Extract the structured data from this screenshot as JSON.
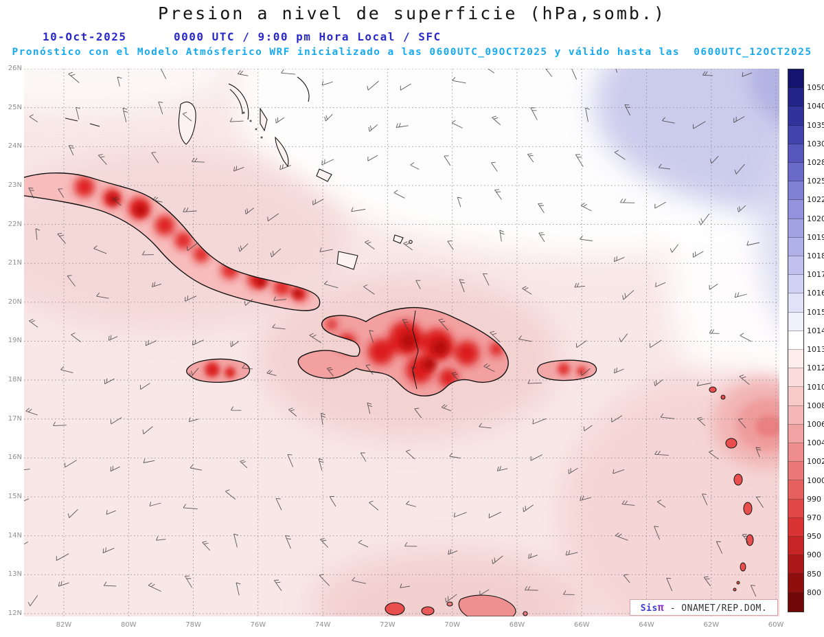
{
  "header": {
    "title": "Presion a nivel de superficie (hPa,somb.)",
    "date": "10-Oct-2025",
    "time": "0000 UTC / 9:00 pm Hora Local / SFC",
    "subtitle": "Pronóstico con el Modelo Atmósferico WRF inicializado a las 0600UTC_09OCT2025 y válido hasta las  0600UTC_12OCT2025"
  },
  "map": {
    "lat_ticks": [
      "26N",
      "25N",
      "24N",
      "23N",
      "22N",
      "21N",
      "20N",
      "19N",
      "18N",
      "17N",
      "16N",
      "15N",
      "14N",
      "13N",
      "12N"
    ],
    "lon_ticks": [
      "82W",
      "80W",
      "78W",
      "76W",
      "74W",
      "72W",
      "70W",
      "68W",
      "66W",
      "64W",
      "62W",
      "60W"
    ],
    "attribution": {
      "sis": "Sis",
      "pi": "π",
      "text": "- ONAMET/REP.DOM."
    }
  },
  "colorbar": {
    "units": "hPa",
    "levels": [
      1050,
      1040,
      1035,
      1030,
      1028,
      1025,
      1022,
      1020,
      1019,
      1018,
      1017,
      1016,
      1015,
      1014,
      1013,
      1012,
      1010,
      1008,
      1006,
      1004,
      1002,
      1000,
      990,
      970,
      950,
      900,
      850,
      800
    ],
    "colors": [
      "#14146e",
      "#232388",
      "#32329b",
      "#4343ad",
      "#5656bd",
      "#6a6ac9",
      "#7f7fd4",
      "#9292dd",
      "#a2a2e3",
      "#b1b1e9",
      "#c1c1ef",
      "#d1d1f4",
      "#e1e1f8",
      "#f0f0fc",
      "#ffffff",
      "#fcecec",
      "#fadcdc",
      "#f7c9c9",
      "#f4b6b6",
      "#f1a2a2",
      "#ee8d8d",
      "#ea7878",
      "#e66060",
      "#e14747",
      "#d93333",
      "#c62525",
      "#ab1818",
      "#8e0d0d",
      "#700606"
    ]
  },
  "chart_data": {
    "type": "heatmap",
    "title": "Presion a nivel de superficie (hPa,somb.)",
    "variable": "Presion a nivel de superficie",
    "units": "hPa",
    "level": "SFC",
    "valid_date": "10-Oct-2025",
    "valid_time": "0000 UTC / 9:00 pm Hora Local",
    "model_run": "Modelo Atmósferico WRF inicializado a las 0600UTC_09OCT2025, válido hasta las 0600UTC_12OCT2025",
    "x_ticks": [
      "82W",
      "80W",
      "78W",
      "76W",
      "74W",
      "72W",
      "70W",
      "68W",
      "66W",
      "64W",
      "62W",
      "60W"
    ],
    "y_ticks": [
      "26N",
      "25N",
      "24N",
      "23N",
      "22N",
      "21N",
      "20N",
      "19N",
      "18N",
      "17N",
      "16N",
      "15N",
      "14N",
      "13N",
      "12N"
    ],
    "colorbar_levels": [
      1050,
      1040,
      1035,
      1030,
      1028,
      1025,
      1022,
      1020,
      1019,
      1018,
      1017,
      1016,
      1015,
      1014,
      1013,
      1012,
      1010,
      1008,
      1006,
      1004,
      1002,
      1000,
      990,
      970,
      950,
      900,
      850,
      800
    ],
    "legend_position": "right",
    "grid": true
  }
}
